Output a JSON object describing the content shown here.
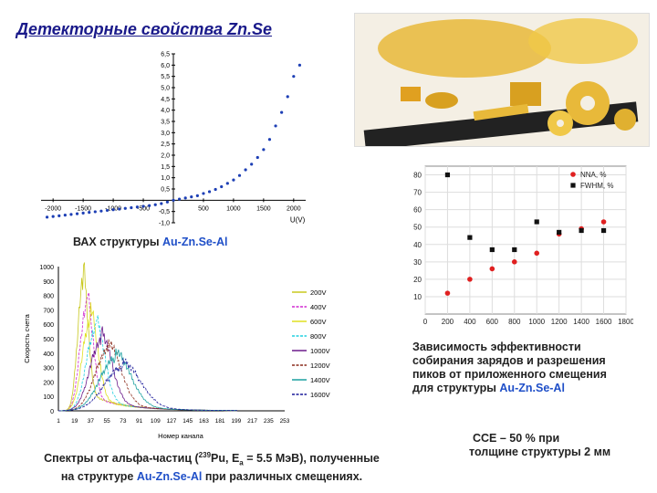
{
  "title": "Детекторные свойства Zn.Se",
  "captions": {
    "iv_prefix": "ВАХ структуры ",
    "iv_material": "Au-Zn.Se-Al",
    "eff_line1": "Зависимость эффективности",
    "eff_line2": "собирания зарядов и разрешения",
    "eff_line3": "пиков от приложенного смещения",
    "eff_line4_prefix": "для структуры ",
    "eff_line4_material": "Au-Zn.Se-Al",
    "cce_line1": "CCE – 50 % при",
    "cce_line2": "толщине структуры 2 мм",
    "spectra_line1_a": "Спектры от альфа-частиц (",
    "spectra_iso_mass": "239",
    "spectra_line1_b": "Pu, E",
    "spectra_sub": "a",
    "spectra_line1_c": " = 5.5 МэВ), полученные",
    "spectra_line2_a": "на структуре ",
    "spectra_line2_material": "Au-Zn.Se-Al",
    "spectra_line2_b": " при различных смещениях."
  },
  "photo": {
    "content": "photo of ZnSe crystal discs, plates and rod with a ruler",
    "disc_color": "#e8b93a"
  },
  "chart_data": [
    {
      "type": "scatter",
      "id": "iv",
      "title": "",
      "xlabel": "U(V)",
      "ylabel": "",
      "xlim": [
        -2200,
        2200
      ],
      "ylim": [
        -1.0,
        6.5
      ],
      "x_ticks": [
        -2000,
        -1500,
        -1000,
        -500,
        500,
        1000,
        1500,
        2000
      ],
      "x_tick_labels": [
        "-2000",
        "-1500",
        "-1000",
        "-500",
        "500",
        "1000",
        "1500",
        "2000"
      ],
      "y_ticks": [
        -1.0,
        -0.5,
        0.5,
        1.0,
        1.5,
        2.0,
        2.5,
        3.0,
        3.5,
        4.0,
        4.5,
        5.0,
        5.5,
        6.0,
        6.5
      ],
      "y_tick_labels": [
        "-1,0",
        "-0,5",
        "0,5",
        "1,0",
        "1,5",
        "2,0",
        "2,5",
        "3,0",
        "3,5",
        "4,0",
        "4,5",
        "5,0",
        "5,5",
        "6,0",
        "6,5"
      ],
      "color": "#1d3fb5",
      "series": [
        {
          "x": [
            -2100,
            -2000,
            -1900,
            -1800,
            -1700,
            -1600,
            -1500,
            -1400,
            -1300,
            -1200,
            -1100,
            -1000,
            -900,
            -800,
            -700,
            -600,
            -500,
            -400,
            -300,
            -200,
            -100,
            0,
            100,
            200,
            300,
            400,
            500,
            600,
            700,
            800,
            900,
            1000,
            1100,
            1200,
            1300,
            1400,
            1500,
            1600,
            1700,
            1800,
            1900,
            2000,
            2100
          ],
          "y": [
            -0.75,
            -0.72,
            -0.69,
            -0.66,
            -0.63,
            -0.6,
            -0.57,
            -0.54,
            -0.51,
            -0.48,
            -0.45,
            -0.42,
            -0.39,
            -0.36,
            -0.33,
            -0.3,
            -0.27,
            -0.24,
            -0.2,
            -0.15,
            -0.08,
            0.0,
            0.05,
            0.1,
            0.15,
            0.2,
            0.3,
            0.38,
            0.48,
            0.6,
            0.75,
            0.9,
            1.1,
            1.35,
            1.6,
            1.9,
            2.25,
            2.7,
            3.3,
            3.9,
            4.6,
            5.5,
            6.0
          ]
        }
      ]
    },
    {
      "type": "scatter",
      "id": "efficiency",
      "title": "",
      "xlabel": "",
      "ylabel": "",
      "xlim": [
        0,
        1800
      ],
      "ylim": [
        0,
        85
      ],
      "x_ticks": [
        0,
        200,
        400,
        600,
        800,
        1000,
        1200,
        1400,
        1600,
        1800
      ],
      "y_ticks": [
        10,
        20,
        30,
        40,
        50,
        60,
        70,
        80
      ],
      "grid": true,
      "legend": "top-right",
      "series": [
        {
          "name": "NNA, %",
          "color": "#e02020",
          "marker": "circle",
          "x": [
            200,
            400,
            600,
            800,
            1000,
            1200,
            1400,
            1600
          ],
          "y": [
            12,
            20,
            26,
            30,
            35,
            46,
            49,
            53
          ]
        },
        {
          "name": "FWHM, %",
          "color": "#111111",
          "marker": "square",
          "x": [
            200,
            400,
            600,
            800,
            1000,
            1200,
            1400,
            1600
          ],
          "y": [
            80,
            44,
            37,
            37,
            53,
            47,
            48,
            48
          ]
        }
      ]
    },
    {
      "type": "line",
      "id": "spectra",
      "title": "",
      "xlabel": "Номер канала",
      "ylabel": "Скорость счета",
      "xlim": [
        1,
        253
      ],
      "ylim": [
        0,
        1000
      ],
      "x_ticks": [
        1,
        19,
        37,
        55,
        73,
        91,
        109,
        127,
        145,
        163,
        181,
        199,
        217,
        235,
        253
      ],
      "y_ticks": [
        0,
        100,
        200,
        300,
        400,
        500,
        600,
        700,
        800,
        900,
        1000
      ],
      "legend": "right",
      "series": [
        {
          "name": "200V",
          "color": "#c8c81e",
          "peak_channel": 28,
          "peak_value": 880,
          "width": 8
        },
        {
          "name": "400V",
          "color": "#d028d0",
          "peak_channel": 32,
          "peak_value": 720,
          "width": 10
        },
        {
          "name": "600V",
          "color": "#e0e020",
          "peak_channel": 36,
          "peak_value": 620,
          "width": 12
        },
        {
          "name": "800V",
          "color": "#20d0e0",
          "peak_channel": 42,
          "peak_value": 560,
          "width": 14
        },
        {
          "name": "1000V",
          "color": "#6a1a8a",
          "peak_channel": 48,
          "peak_value": 480,
          "width": 17
        },
        {
          "name": "1200V",
          "color": "#8a2a1a",
          "peak_channel": 56,
          "peak_value": 420,
          "width": 20
        },
        {
          "name": "1400V",
          "color": "#1aa0a0",
          "peak_channel": 64,
          "peak_value": 360,
          "width": 24
        },
        {
          "name": "1600V",
          "color": "#1a1a9a",
          "peak_channel": 72,
          "peak_value": 300,
          "width": 28
        }
      ]
    }
  ]
}
